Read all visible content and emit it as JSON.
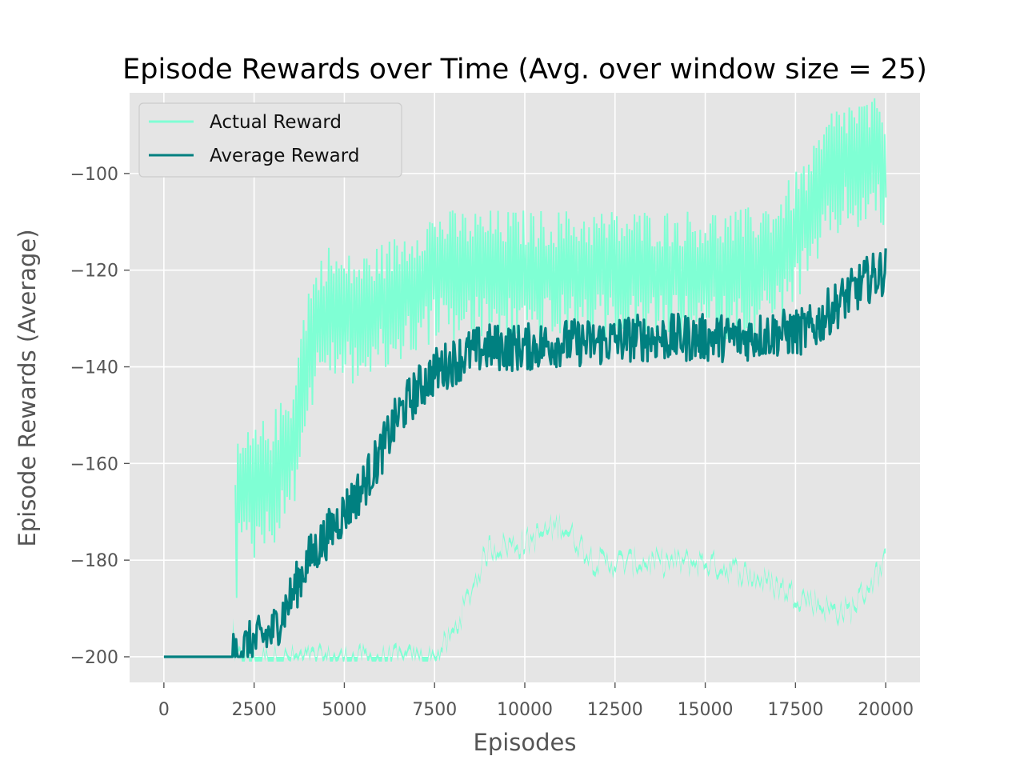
{
  "chart_data": {
    "type": "line",
    "title": "Episode Rewards over Time (Avg. over window size = 25)",
    "xlabel": "Episodes",
    "ylabel": "Episode Rewards (Average)",
    "xlim": [
      -950,
      20950
    ],
    "ylim": [
      -205.3,
      -83.3
    ],
    "x_ticks": [
      0,
      2500,
      5000,
      7500,
      10000,
      12500,
      15000,
      17500,
      20000
    ],
    "x_tick_labels": [
      "0",
      "2500",
      "5000",
      "7500",
      "10000",
      "12500",
      "15000",
      "17500",
      "20000"
    ],
    "y_ticks": [
      -200,
      -180,
      -160,
      -140,
      -120,
      -100
    ],
    "y_tick_labels": [
      "−200",
      "−180",
      "−160",
      "−140",
      "−120",
      "−100"
    ],
    "grid": true,
    "legend_position": "top-left",
    "series": [
      {
        "name": "Actual Reward",
        "color": "#7fffd4",
        "style": "band of raw per-episode rewards",
        "x": [
          0,
          1900,
          2000,
          2500,
          3000,
          3500,
          4000,
          4500,
          5000,
          5500,
          6000,
          6500,
          7000,
          7500,
          8000,
          9000,
          10000,
          11000,
          12000,
          13000,
          14000,
          15000,
          16000,
          17000,
          18000,
          18500,
          19000,
          19500,
          20000
        ],
        "high": [
          -200,
          -200,
          -160,
          -158,
          -155,
          -150,
          -128,
          -120,
          -122,
          -122,
          -120,
          -118,
          -115,
          -113,
          -113,
          -113,
          -113,
          -113,
          -113,
          -113,
          -113,
          -113,
          -113,
          -110,
          -100,
          -92,
          -90,
          -90,
          -90
        ],
        "low": [
          -200,
          -200,
          -200,
          -200,
          -200,
          -200,
          -200,
          -200,
          -200,
          -200,
          -200,
          -200,
          -200,
          -200,
          -195,
          -177,
          -176,
          -172,
          -180,
          -180,
          -180,
          -180,
          -182,
          -185,
          -188,
          -190,
          -190,
          -185,
          -180
        ]
      },
      {
        "name": "Average Reward",
        "color": "#008080",
        "style": "moving average line",
        "x": [
          0,
          1900,
          2000,
          2500,
          3000,
          3500,
          4000,
          4500,
          5000,
          5500,
          6000,
          6500,
          7000,
          7500,
          8000,
          8500,
          9000,
          10000,
          11000,
          12000,
          13000,
          14000,
          15000,
          16000,
          17000,
          17500,
          18000,
          18500,
          19000,
          19500,
          20000
        ],
        "y": [
          -200,
          -200,
          -199,
          -197,
          -195,
          -188,
          -180,
          -175,
          -170,
          -165,
          -158,
          -150,
          -145,
          -141,
          -139,
          -137,
          -136,
          -136,
          -135,
          -135,
          -134,
          -134,
          -134,
          -134,
          -133,
          -133,
          -132,
          -128,
          -125,
          -122,
          -120
        ]
      }
    ]
  }
}
